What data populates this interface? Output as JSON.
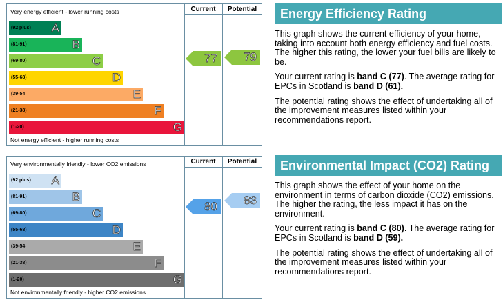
{
  "energy": {
    "title": "Energy Efficiency Rating",
    "top_note": "Very energy efficient - lower running costs",
    "bottom_note": "Not energy efficient - higher running costs",
    "current_header": "Current",
    "potential_header": "Potential",
    "current_value": "77",
    "potential_value": "79",
    "current_color": "#8dc63f",
    "potential_color": "#8dc63f",
    "bands": [
      {
        "range": "(92 plus)",
        "letter": "A",
        "color": "#008054"
      },
      {
        "range": "(81-91)",
        "letter": "B",
        "color": "#19b459"
      },
      {
        "range": "(69-80)",
        "letter": "C",
        "color": "#8dce46"
      },
      {
        "range": "(55-68)",
        "letter": "D",
        "color": "#ffd500"
      },
      {
        "range": "(39-54",
        "letter": "E",
        "color": "#fcaa65"
      },
      {
        "range": "(21-38)",
        "letter": "F",
        "color": "#ef8023"
      },
      {
        "range": "(1-20)",
        "letter": "G",
        "color": "#e9153b"
      }
    ],
    "para1": "This graph shows the current efficiency of your home, taking into account both energy efficiency and fuel costs. The higher this rating, the lower your fuel bills are likely to be.",
    "para2_prefix": "Your current rating is ",
    "para2_band": "band C (77)",
    "para2_mid": ". The average rating for EPCs in Scotland is ",
    "para2_avg": "band D (61).",
    "para3": "The potential rating shows the effect of undertaking all of the improvement measures listed within your recommendations report."
  },
  "env": {
    "title": "Environmental Impact (CO2) Rating",
    "top_note": "Very environmentally friendly - lower CO2 emissions",
    "bottom_note": "Not environmentally friendly - higher CO2 emissions",
    "current_header": "Current",
    "potential_header": "Potential",
    "current_value": "80",
    "potential_value": "83",
    "current_color": "#55a2e8",
    "potential_color": "#a6cdf2",
    "bands": [
      {
        "range": "(92 plus)",
        "letter": "A",
        "color": "#cfe2f3"
      },
      {
        "range": "(81-91)",
        "letter": "B",
        "color": "#9fc5e8"
      },
      {
        "range": "(69-80)",
        "letter": "C",
        "color": "#6fa8dc"
      },
      {
        "range": "(55-68)",
        "letter": "D",
        "color": "#3d85c6"
      },
      {
        "range": "(39-54",
        "letter": "E",
        "color": "#aaaaaa"
      },
      {
        "range": "(21-38)",
        "letter": "F",
        "color": "#8c8c8c"
      },
      {
        "range": "(1-20)",
        "letter": "G",
        "color": "#6e6e6e"
      }
    ],
    "para1": "This graph shows the effect of your home on the environment in terms of carbon dioxide (CO2) emissions. The higher the rating, the less impact it has on the environment.",
    "para2_prefix": "Your current rating is ",
    "para2_band": "band C (80)",
    "para2_mid": ". The average rating for EPCs in Scotland is ",
    "para2_avg": "band D (59).",
    "para3": "The potential rating shows the effect of undertaking all of the improvement measures listed within your recommendations report."
  }
}
